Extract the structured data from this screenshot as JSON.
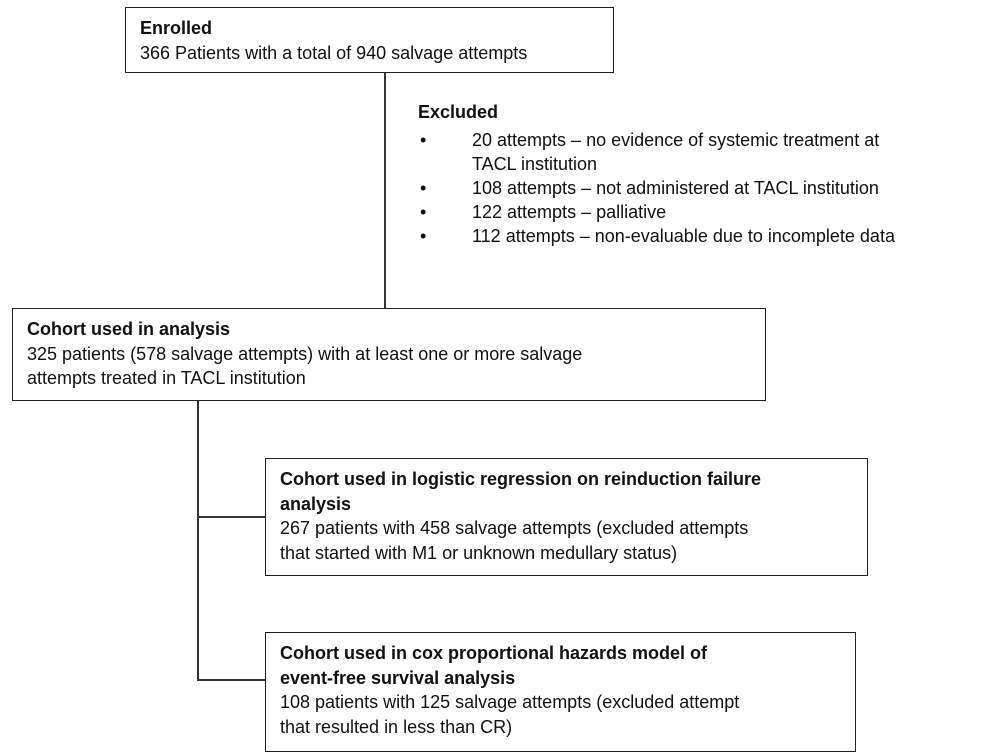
{
  "nodes": [
    {
      "title": "Enrolled",
      "lines": [
        "366 Patients with a total of 940 salvage attempts"
      ]
    },
    {
      "title": "Cohort used in analysis",
      "lines": [
        "325 patients (578 salvage attempts) with at least one or more salvage",
        "attempts treated in TACL institution"
      ]
    },
    {
      "title": [
        "Cohort used in logistic regression on reinduction failure",
        "analysis"
      ],
      "lines": [
        "267 patients with 458 salvage attempts (excluded attempts",
        "that started with M1 or unknown medullary status)"
      ]
    },
    {
      "title": [
        "Cohort used in cox proportional hazards model of",
        "event-free survival analysis"
      ],
      "lines": [
        "108 patients with 125 salvage attempts (excluded attempt",
        "that resulted in less than CR)"
      ]
    }
  ],
  "excluded": {
    "title": "Excluded",
    "items": [
      [
        "20 attempts – no evidence of systemic treatment at",
        "TACL institution"
      ],
      [
        "108 attempts – not administered at TACL institution"
      ],
      [
        "122 attempts – palliative"
      ],
      [
        "112 attempts – non-evaluable due to incomplete data"
      ]
    ]
  }
}
